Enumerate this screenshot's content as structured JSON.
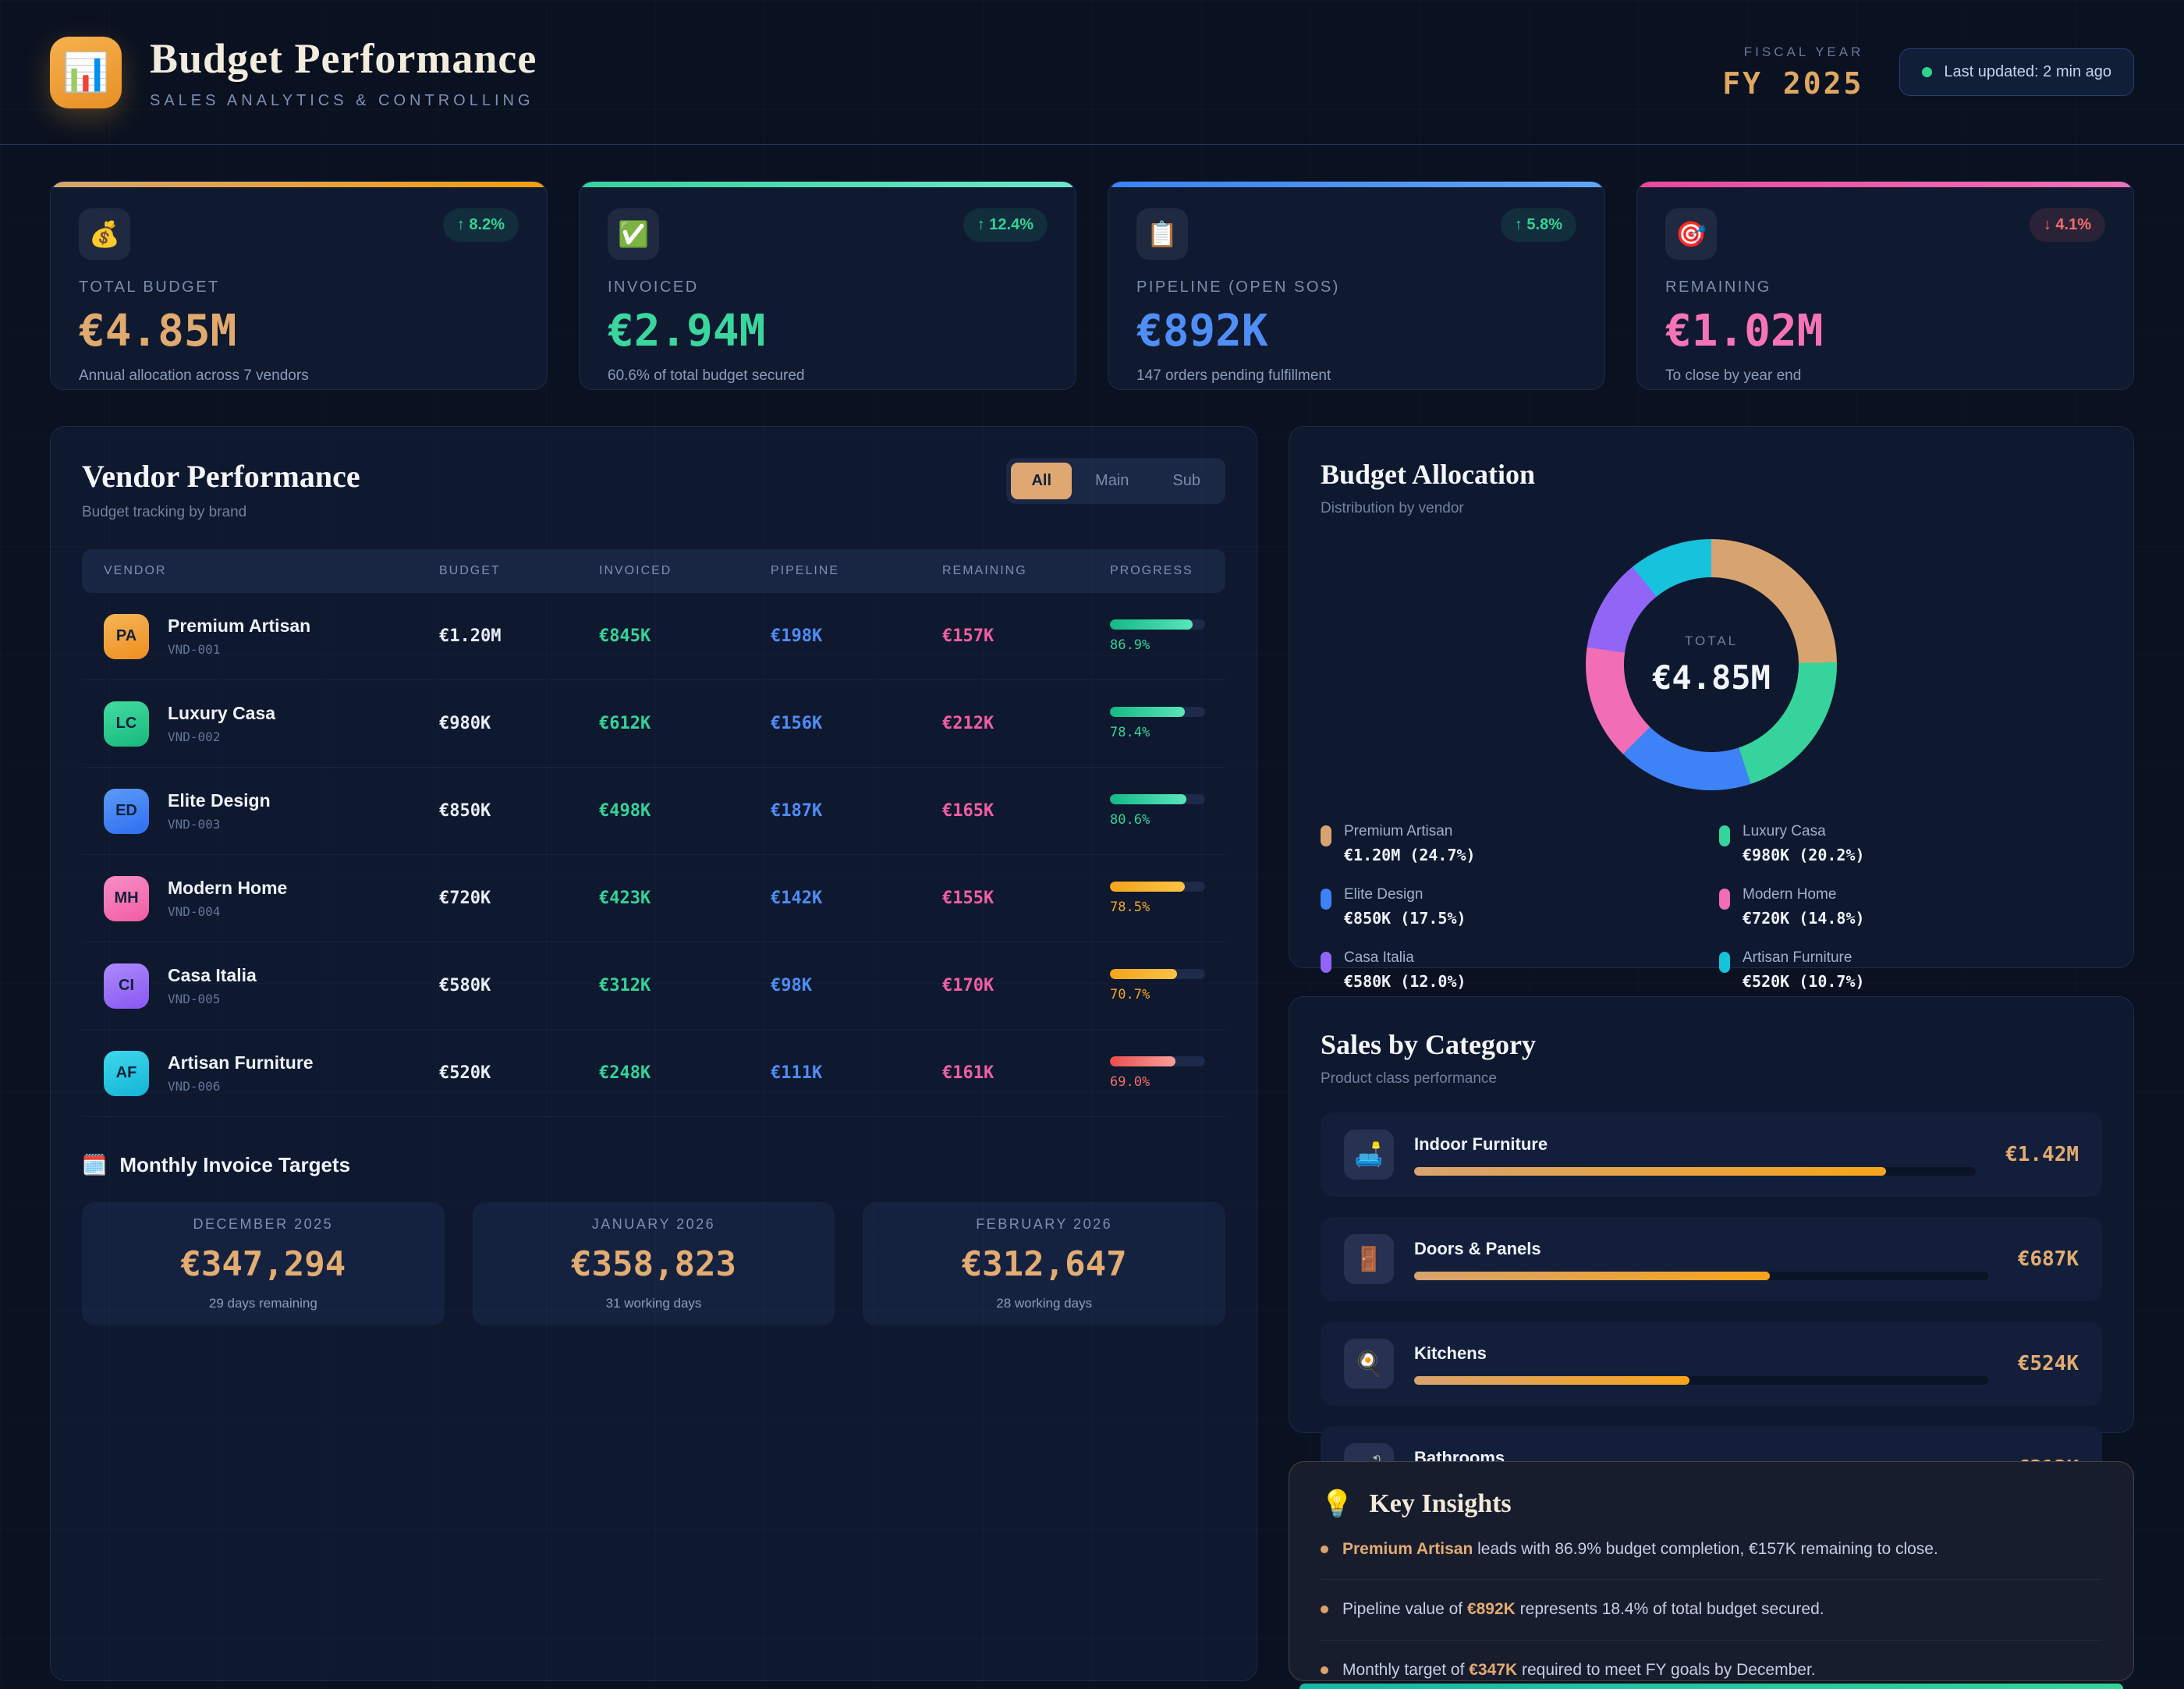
{
  "header": {
    "logo_icon": "📊",
    "title": "Budget Performance",
    "subtitle": "SALES ANALYTICS & CONTROLLING",
    "fiscal_year_label": "FISCAL YEAR",
    "fiscal_year_value": "FY 2025",
    "last_updated": "Last updated: 2 min ago"
  },
  "kpis": [
    {
      "icon": "💰",
      "label": "TOTAL BUDGET",
      "value": "€4.85M",
      "sub": "Annual allocation across 7 vendors",
      "delta": "8.2%",
      "delta_dir": "up",
      "value_color": "#e0aa6e",
      "accent": [
        "#d7a36f",
        "#f59e0b"
      ]
    },
    {
      "icon": "✅",
      "label": "INVOICED",
      "value": "€2.94M",
      "sub": "60.6% of total budget secured",
      "delta": "12.4%",
      "delta_dir": "up",
      "value_color": "#3ad69e",
      "accent": [
        "#34d399",
        "#6ee7c9"
      ]
    },
    {
      "icon": "📋",
      "label": "PIPELINE (OPEN SOS)",
      "value": "€892K",
      "sub": "147 orders pending fulfillment",
      "delta": "5.8%",
      "delta_dir": "up",
      "value_color": "#4f8ef7",
      "accent": [
        "#3b82f6",
        "#60a5fa"
      ]
    },
    {
      "icon": "🎯",
      "label": "REMAINING",
      "value": "€1.02M",
      "sub": "To close by year end",
      "delta": "4.1%",
      "delta_dir": "down",
      "value_color": "#f673b8",
      "accent": [
        "#ec4899",
        "#f472b6"
      ]
    }
  ],
  "vendor_performance": {
    "title": "Vendor Performance",
    "subtitle": "Budget tracking by brand",
    "filters": [
      "All",
      "Main",
      "Sub"
    ],
    "active_filter": "All",
    "columns": [
      "VENDOR",
      "BUDGET",
      "INVOICED",
      "PIPELINE",
      "REMAINING",
      "PROGRESS"
    ],
    "rows": [
      {
        "initials": "PA",
        "name": "Premium Artisan",
        "code": "VND-001",
        "budget": "€1.20M",
        "invoiced": "€845K",
        "pipeline": "€198K",
        "remaining": "€157K",
        "progress": 86.9,
        "progress_label": "86.9%",
        "status": "green",
        "avatar": [
          "#f6b558",
          "#ee8f1e"
        ]
      },
      {
        "initials": "LC",
        "name": "Luxury Casa",
        "code": "VND-002",
        "budget": "€980K",
        "invoiced": "€612K",
        "pipeline": "€156K",
        "remaining": "€212K",
        "progress": 78.4,
        "progress_label": "78.4%",
        "status": "green",
        "avatar": [
          "#43dca2",
          "#17b87d"
        ]
      },
      {
        "initials": "ED",
        "name": "Elite Design",
        "code": "VND-003",
        "budget": "€850K",
        "invoiced": "€498K",
        "pipeline": "€187K",
        "remaining": "€165K",
        "progress": 80.6,
        "progress_label": "80.6%",
        "status": "green",
        "avatar": [
          "#5b9bf8",
          "#2f6ef0"
        ]
      },
      {
        "initials": "MH",
        "name": "Modern Home",
        "code": "VND-004",
        "budget": "€720K",
        "invoiced": "€423K",
        "pipeline": "€142K",
        "remaining": "€155K",
        "progress": 78.5,
        "progress_label": "78.5%",
        "status": "amber",
        "avatar": [
          "#f78fc5",
          "#f25ca5"
        ]
      },
      {
        "initials": "CI",
        "name": "Casa Italia",
        "code": "VND-005",
        "budget": "€580K",
        "invoiced": "€312K",
        "pipeline": "€98K",
        "remaining": "€170K",
        "progress": 70.7,
        "progress_label": "70.7%",
        "status": "amber",
        "avatar": [
          "#ab8bfb",
          "#8a56f2"
        ]
      },
      {
        "initials": "AF",
        "name": "Artisan Furniture",
        "code": "VND-006",
        "budget": "€520K",
        "invoiced": "€248K",
        "pipeline": "€111K",
        "remaining": "€161K",
        "progress": 69.0,
        "progress_label": "69.0%",
        "status": "red",
        "avatar": [
          "#3fd8ec",
          "#12b5d6"
        ]
      }
    ]
  },
  "monthly_targets": {
    "icon": "🗓️",
    "title": "Monthly Invoice Targets",
    "items": [
      {
        "month": "DECEMBER 2025",
        "value": "€347,294",
        "sub": "29 days remaining"
      },
      {
        "month": "JANUARY 2026",
        "value": "€358,823",
        "sub": "31 working days"
      },
      {
        "month": "FEBRUARY 2026",
        "value": "€312,647",
        "sub": "28 working days"
      }
    ]
  },
  "budget_allocation": {
    "title": "Budget Allocation",
    "subtitle": "Distribution by vendor",
    "center_label": "TOTAL",
    "center_value": "€4.85M",
    "chart_data": {
      "type": "pie",
      "title": "Budget Allocation",
      "categories": [
        "Premium Artisan",
        "Luxury Casa",
        "Elite Design",
        "Modern Home",
        "Casa Italia",
        "Artisan Furniture"
      ],
      "values": [
        24.7,
        20.2,
        17.5,
        14.8,
        12.0,
        10.7
      ],
      "amount_labels": [
        "€1.20M (24.7%)",
        "€980K (20.2%)",
        "€850K (17.5%)",
        "€720K (14.8%)",
        "€580K (12.0%)",
        "€520K (10.7%)"
      ],
      "colors": [
        "#d7a36f",
        "#36d49c",
        "#3d82f6",
        "#f16eb4",
        "#9165f5",
        "#17c2dc"
      ],
      "total_label": "€4.85M",
      "legend_position": "bottom"
    }
  },
  "sales_by_category": {
    "title": "Sales by Category",
    "subtitle": "Product class performance",
    "chart_data": {
      "type": "bar",
      "categories": [
        "Indoor Furniture",
        "Doors & Panels",
        "Kitchens",
        "Bathrooms"
      ],
      "value_labels": [
        "€1.42M",
        "€687K",
        "€524K",
        "€312K"
      ],
      "fill_pct": [
        84,
        62,
        48,
        35
      ]
    },
    "items": [
      {
        "icon": "🛋️",
        "name": "Indoor Furniture",
        "value": "€1.42M",
        "pct": 84
      },
      {
        "icon": "🚪",
        "name": "Doors & Panels",
        "value": "€687K",
        "pct": 62
      },
      {
        "icon": "🍳",
        "name": "Kitchens",
        "value": "€524K",
        "pct": 48
      },
      {
        "icon": "🛁",
        "name": "Bathrooms",
        "value": "€312K",
        "pct": 35
      }
    ]
  },
  "key_insights": {
    "icon": "💡",
    "title": "Key Insights",
    "items": [
      {
        "pre": "",
        "strong": "Premium Artisan",
        "post": " leads with 86.9% budget completion, €157K remaining to close."
      },
      {
        "pre": "Pipeline value of ",
        "strong": "€892K",
        "post": " represents 18.4% of total budget secured."
      },
      {
        "pre": "Monthly target of ",
        "strong": "€347K",
        "post": " required to meet FY goals by December."
      }
    ]
  }
}
